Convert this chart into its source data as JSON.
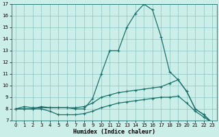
{
  "xlabel": "Humidex (Indice chaleur)",
  "xlim": [
    -0.5,
    23.5
  ],
  "ylim": [
    7,
    17
  ],
  "yticks": [
    7,
    8,
    9,
    10,
    11,
    12,
    13,
    14,
    15,
    16,
    17
  ],
  "xticks": [
    0,
    1,
    2,
    3,
    4,
    5,
    6,
    7,
    8,
    9,
    10,
    11,
    12,
    13,
    14,
    15,
    16,
    17,
    18,
    19,
    20,
    21,
    22,
    23
  ],
  "bg_color": "#cceee8",
  "line_color": "#1a6e6a",
  "line1_y": [
    8.0,
    8.2,
    8.1,
    8.1,
    8.1,
    8.1,
    8.1,
    8.0,
    8.0,
    8.9,
    11.0,
    13.0,
    13.0,
    15.0,
    16.2,
    17.0,
    16.5,
    14.2,
    11.2,
    10.5,
    9.5,
    8.0,
    7.5,
    6.8
  ],
  "line2_y": [
    8.0,
    8.0,
    8.0,
    8.2,
    8.1,
    8.1,
    8.1,
    8.1,
    8.2,
    8.5,
    9.0,
    9.2,
    9.4,
    9.5,
    9.6,
    9.7,
    9.8,
    9.9,
    10.2,
    10.5,
    9.5,
    8.0,
    7.5,
    6.8
  ],
  "line3_y": [
    8.0,
    8.0,
    8.0,
    8.0,
    7.8,
    7.5,
    7.5,
    7.5,
    7.6,
    7.8,
    8.1,
    8.3,
    8.5,
    8.6,
    8.7,
    8.8,
    8.9,
    9.0,
    9.0,
    9.1,
    8.5,
    7.8,
    7.3,
    6.8
  ]
}
